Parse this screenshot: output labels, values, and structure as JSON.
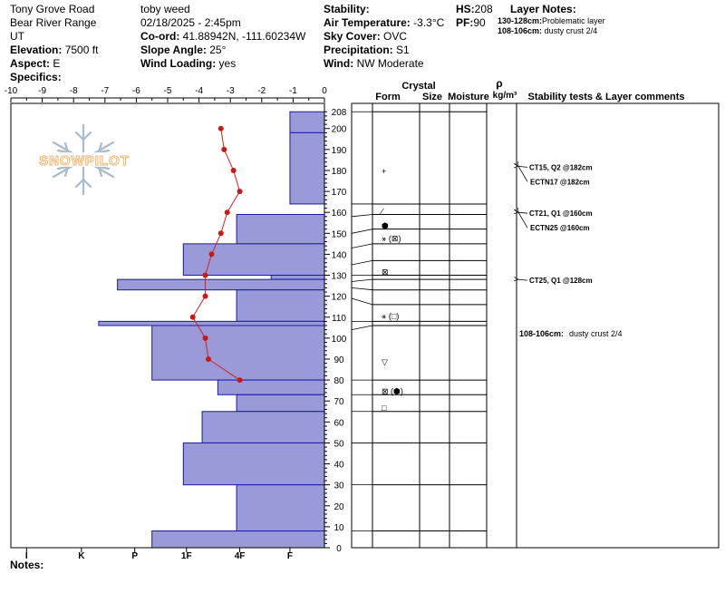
{
  "header": {
    "location": "Tony Grove Road",
    "range": "Bear River Range",
    "state": "UT",
    "elevation_label": "Elevation:",
    "elevation_value": "7500 ft",
    "aspect_label": "Aspect:",
    "aspect_value": "E",
    "specifics_label": "Specifics:",
    "observer": "toby weed",
    "datetime": "02/18/2025 - 2:45pm",
    "coord_label": "Co-ord:",
    "coord_value": "41.88942N, -111.60234W",
    "slope_label": "Slope Angle:",
    "slope_value": "25°",
    "wind_loading_label": "Wind Loading:",
    "wind_loading_value": "yes",
    "stability_label": "Stability:",
    "air_temp_label": "Air Temperature:",
    "air_temp_value": "-3.3°C",
    "sky_label": "Sky Cover:",
    "sky_value": "OVC",
    "precip_label": "Precipitation:",
    "precip_value": "S1",
    "wind_label": "Wind:",
    "wind_value": "NW Moderate",
    "hs_label": "HS:",
    "hs_value": "208",
    "pf_label": "PF:",
    "pf_value": "90",
    "layer_notes_label": "Layer Notes:",
    "layer_notes": [
      {
        "range": "130-128cm:",
        "text": "Problematic layer"
      },
      {
        "range": "108-106cm:",
        "text": "dusty crust 2/4"
      }
    ]
  },
  "notes_label": "Notes:",
  "table_headers": {
    "crystal": "Crystal",
    "form": "Form",
    "size": "Size",
    "moisture": "Moisture",
    "rho": "ρ",
    "density_unit": "kg/m³",
    "comments": "Stability tests & Layer comments"
  },
  "logo_text": "SNOWPILOT",
  "chart_data": {
    "type": "snow_profile",
    "temp_axis": {
      "min": -10,
      "max": 0,
      "ticks": [
        "-10",
        "-9",
        "-8",
        "-7",
        "-6",
        "-5",
        "-4",
        "-3",
        "-2",
        "-1",
        "0"
      ]
    },
    "height_axis": {
      "min": 0,
      "max": 208,
      "ticks": [
        "208",
        "200",
        "190",
        "180",
        "170",
        "160",
        "150",
        "140",
        "130",
        "120",
        "110",
        "100",
        "90",
        "80",
        "70",
        "60",
        "50",
        "40",
        "30",
        "20",
        "10",
        "0"
      ]
    },
    "hardness_scale": [
      "I",
      "K",
      "P",
      "1F",
      "4F",
      "F"
    ],
    "hardness_profile": [
      {
        "bottom": 198,
        "top": 208,
        "temp_width": -1.1
      },
      {
        "bottom": 164,
        "top": 198,
        "temp_width": -1.1
      },
      {
        "bottom": 145,
        "top": 159,
        "temp_width": -2.8
      },
      {
        "bottom": 130,
        "top": 145,
        "temp_width": -4.5
      },
      {
        "bottom": 128,
        "top": 130,
        "temp_width": -1.7
      },
      {
        "bottom": 123,
        "top": 128,
        "temp_width": -6.6
      },
      {
        "bottom": 108,
        "top": 123,
        "temp_width": -2.8
      },
      {
        "bottom": 106,
        "top": 108,
        "temp_width": -7.2
      },
      {
        "bottom": 80,
        "top": 106,
        "temp_width": -5.5
      },
      {
        "bottom": 73,
        "top": 80,
        "temp_width": -3.4
      },
      {
        "bottom": 65,
        "top": 73,
        "temp_width": -2.8
      },
      {
        "bottom": 50,
        "top": 65,
        "temp_width": -3.9
      },
      {
        "bottom": 30,
        "top": 50,
        "temp_width": -4.5
      },
      {
        "bottom": 8,
        "top": 30,
        "temp_width": -2.8
      },
      {
        "bottom": 0,
        "top": 8,
        "temp_width": -5.5
      }
    ],
    "temperature_profile": [
      {
        "height": 200,
        "temp": -3.3
      },
      {
        "height": 190,
        "temp": -3.2
      },
      {
        "height": 180,
        "temp": -2.9
      },
      {
        "height": 170,
        "temp": -2.7
      },
      {
        "height": 160,
        "temp": -3.1
      },
      {
        "height": 150,
        "temp": -3.3
      },
      {
        "height": 140,
        "temp": -3.6
      },
      {
        "height": 130,
        "temp": -3.8
      },
      {
        "height": 120,
        "temp": -3.8
      },
      {
        "height": 110,
        "temp": -4.2
      },
      {
        "height": 100,
        "temp": -3.8
      },
      {
        "height": 90,
        "temp": -3.7
      },
      {
        "height": 80,
        "temp": -2.7
      }
    ],
    "layer_boundaries": [
      208,
      164,
      159,
      152,
      145,
      137,
      130,
      128,
      123,
      116,
      108,
      106,
      80,
      73,
      65,
      50,
      30,
      8
    ],
    "grain_forms": [
      {
        "height": 180,
        "symbol": "+"
      },
      {
        "height": 161,
        "symbol": "∕"
      },
      {
        "height": 154,
        "symbol": "⬢"
      },
      {
        "height": 148,
        "symbol": "⚹ (⊠)"
      },
      {
        "height": 132,
        "symbol": "⊠"
      },
      {
        "height": 111,
        "symbol": "⚹ (□)"
      },
      {
        "height": 89,
        "symbol": "▽"
      },
      {
        "height": 75,
        "symbol": "⊠ (⬢)"
      },
      {
        "height": 67,
        "symbol": "□"
      }
    ],
    "stability_tests": [
      {
        "height": 182,
        "labels": [
          "CT15, Q2 @182cm",
          "ECTN17 @182cm"
        ]
      },
      {
        "height": 160,
        "labels": [
          "CT21, Q1 @160cm",
          "ECTN25 @160cm"
        ]
      },
      {
        "height": 128,
        "labels": [
          "CT25, Q1 @128cm"
        ]
      }
    ],
    "layer_comment": {
      "height": 101,
      "range": "108-106cm:",
      "text": "dusty crust 2/4"
    }
  }
}
